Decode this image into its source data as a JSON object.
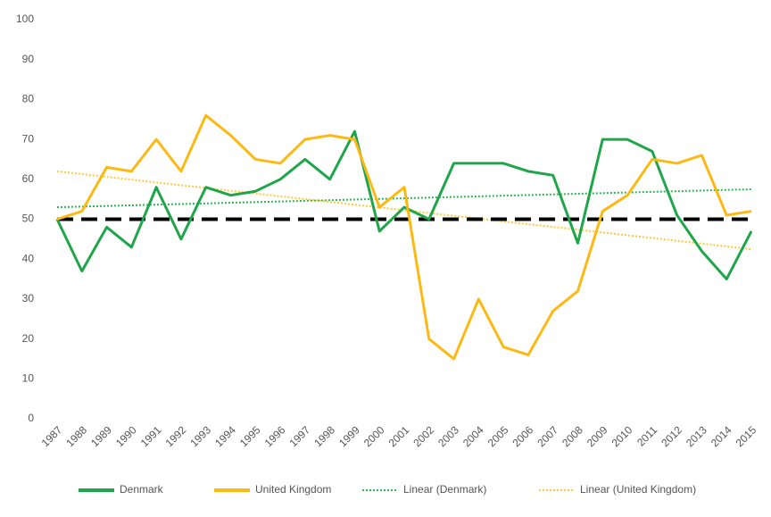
{
  "chart_data": {
    "type": "line",
    "categories": [
      "1987",
      "1988",
      "1989",
      "1990",
      "1991",
      "1992",
      "1993",
      "1994",
      "1995",
      "1996",
      "1997",
      "1998",
      "1999",
      "2000",
      "2001",
      "2002",
      "2003",
      "2004",
      "2005",
      "2006",
      "2007",
      "2008",
      "2009",
      "2010",
      "2011",
      "2012",
      "2013",
      "2014",
      "2015"
    ],
    "series": [
      {
        "name": "Denmark",
        "color": "#1fa54a",
        "values": [
          50,
          37,
          48,
          43,
          58,
          45,
          58,
          56,
          57,
          60,
          65,
          60,
          72,
          47,
          53,
          50,
          64,
          64,
          64,
          62,
          61,
          44,
          70,
          70,
          67,
          51,
          42,
          35,
          47
        ]
      },
      {
        "name": "United Kingdom",
        "color": "#fdb913",
        "values": [
          50,
          52,
          63,
          62,
          70,
          62,
          76,
          71,
          65,
          64,
          70,
          71,
          70,
          53,
          58,
          20,
          15,
          30,
          18,
          16,
          27,
          32,
          52,
          56,
          65,
          64,
          66,
          51,
          52
        ]
      }
    ],
    "trendlines": [
      {
        "name": "Linear (Denmark)",
        "color": "#2fb34f",
        "start": 53,
        "end": 57.5
      },
      {
        "name": "Linear (United Kingdom)",
        "color": "#fdc83a",
        "start": 62,
        "end": 42.5
      }
    ],
    "reference_line": {
      "value": 50,
      "color": "#000000"
    },
    "ylim": [
      0,
      100
    ],
    "yticks": [
      0,
      10,
      20,
      30,
      40,
      50,
      60,
      70,
      80,
      90,
      100
    ],
    "grid": false,
    "legend": "bottom"
  }
}
